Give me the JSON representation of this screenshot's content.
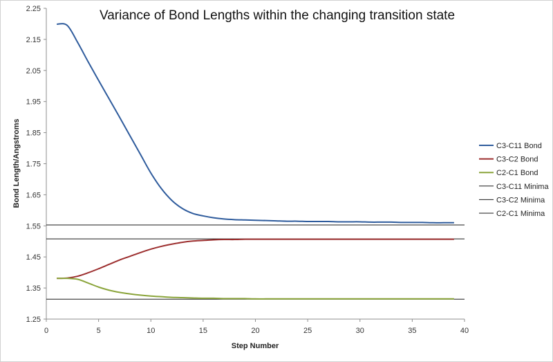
{
  "chart_data": {
    "type": "line",
    "title": "Variance of Bond Lengths within the changing transition state",
    "xlabel": "Step Number",
    "ylabel": "Bond Length/Angstroms",
    "xlim": [
      0,
      40
    ],
    "ylim": [
      1.25,
      2.25
    ],
    "xticks": [
      0,
      5,
      10,
      15,
      20,
      25,
      30,
      35,
      40
    ],
    "yticks": [
      1.25,
      1.35,
      1.45,
      1.55,
      1.65,
      1.75,
      1.85,
      1.95,
      2.05,
      2.15,
      2.25
    ],
    "ytick_labels": [
      "1.25",
      "1.35",
      "1.45",
      "1.55",
      "1.65",
      "1.75",
      "1.85",
      "1.95",
      "2.05",
      "2.15",
      "2.25"
    ],
    "grid": false,
    "legend_position": "right",
    "x": [
      1,
      2,
      3,
      4,
      5,
      6,
      7,
      8,
      9,
      10,
      11,
      12,
      13,
      14,
      15,
      16,
      17,
      18,
      19,
      20,
      21,
      22,
      23,
      24,
      25,
      26,
      27,
      28,
      29,
      30,
      31,
      32,
      33,
      34,
      35,
      36,
      37,
      38,
      39
    ],
    "series": [
      {
        "name": "C3-C11 Bond",
        "color": "#2e5b9c",
        "values": [
          2.199,
          2.195,
          2.14,
          2.078,
          2.018,
          1.959,
          1.9,
          1.84,
          1.78,
          1.72,
          1.67,
          1.632,
          1.606,
          1.59,
          1.582,
          1.576,
          1.572,
          1.57,
          1.569,
          1.568,
          1.567,
          1.566,
          1.565,
          1.565,
          1.564,
          1.564,
          1.564,
          1.563,
          1.563,
          1.563,
          1.562,
          1.562,
          1.562,
          1.561,
          1.561,
          1.561,
          1.56,
          1.56,
          1.56
        ]
      },
      {
        "name": "C3-C2 Bond",
        "color": "#9c2e2e",
        "values": [
          1.381,
          1.382,
          1.388,
          1.399,
          1.412,
          1.426,
          1.44,
          1.452,
          1.464,
          1.475,
          1.484,
          1.491,
          1.497,
          1.501,
          1.503,
          1.505,
          1.506,
          1.506,
          1.507,
          1.507,
          1.507,
          1.507,
          1.507,
          1.507,
          1.507,
          1.507,
          1.507,
          1.507,
          1.507,
          1.507,
          1.507,
          1.507,
          1.507,
          1.507,
          1.507,
          1.507,
          1.507,
          1.507,
          1.507
        ]
      },
      {
        "name": "C2-C1 Bond",
        "color": "#8aa43a",
        "values": [
          1.381,
          1.381,
          1.378,
          1.366,
          1.353,
          1.343,
          1.336,
          1.331,
          1.327,
          1.324,
          1.322,
          1.32,
          1.319,
          1.318,
          1.317,
          1.317,
          1.316,
          1.316,
          1.316,
          1.315,
          1.315,
          1.315,
          1.315,
          1.315,
          1.315,
          1.315,
          1.315,
          1.315,
          1.315,
          1.315,
          1.315,
          1.315,
          1.315,
          1.315,
          1.315,
          1.315,
          1.315,
          1.315,
          1.315
        ]
      }
    ],
    "reference_lines": [
      {
        "name": "C3-C11 Minima",
        "color": "#1a1a1a",
        "value": 1.553,
        "x_range": [
          0,
          40
        ]
      },
      {
        "name": "C3-C2 Minima",
        "color": "#1a1a1a",
        "value": 1.508,
        "x_range": [
          0,
          40
        ]
      },
      {
        "name": "C2-C1 Minima",
        "color": "#1a1a1a",
        "value": 1.314,
        "x_range": [
          0,
          40
        ]
      }
    ]
  }
}
